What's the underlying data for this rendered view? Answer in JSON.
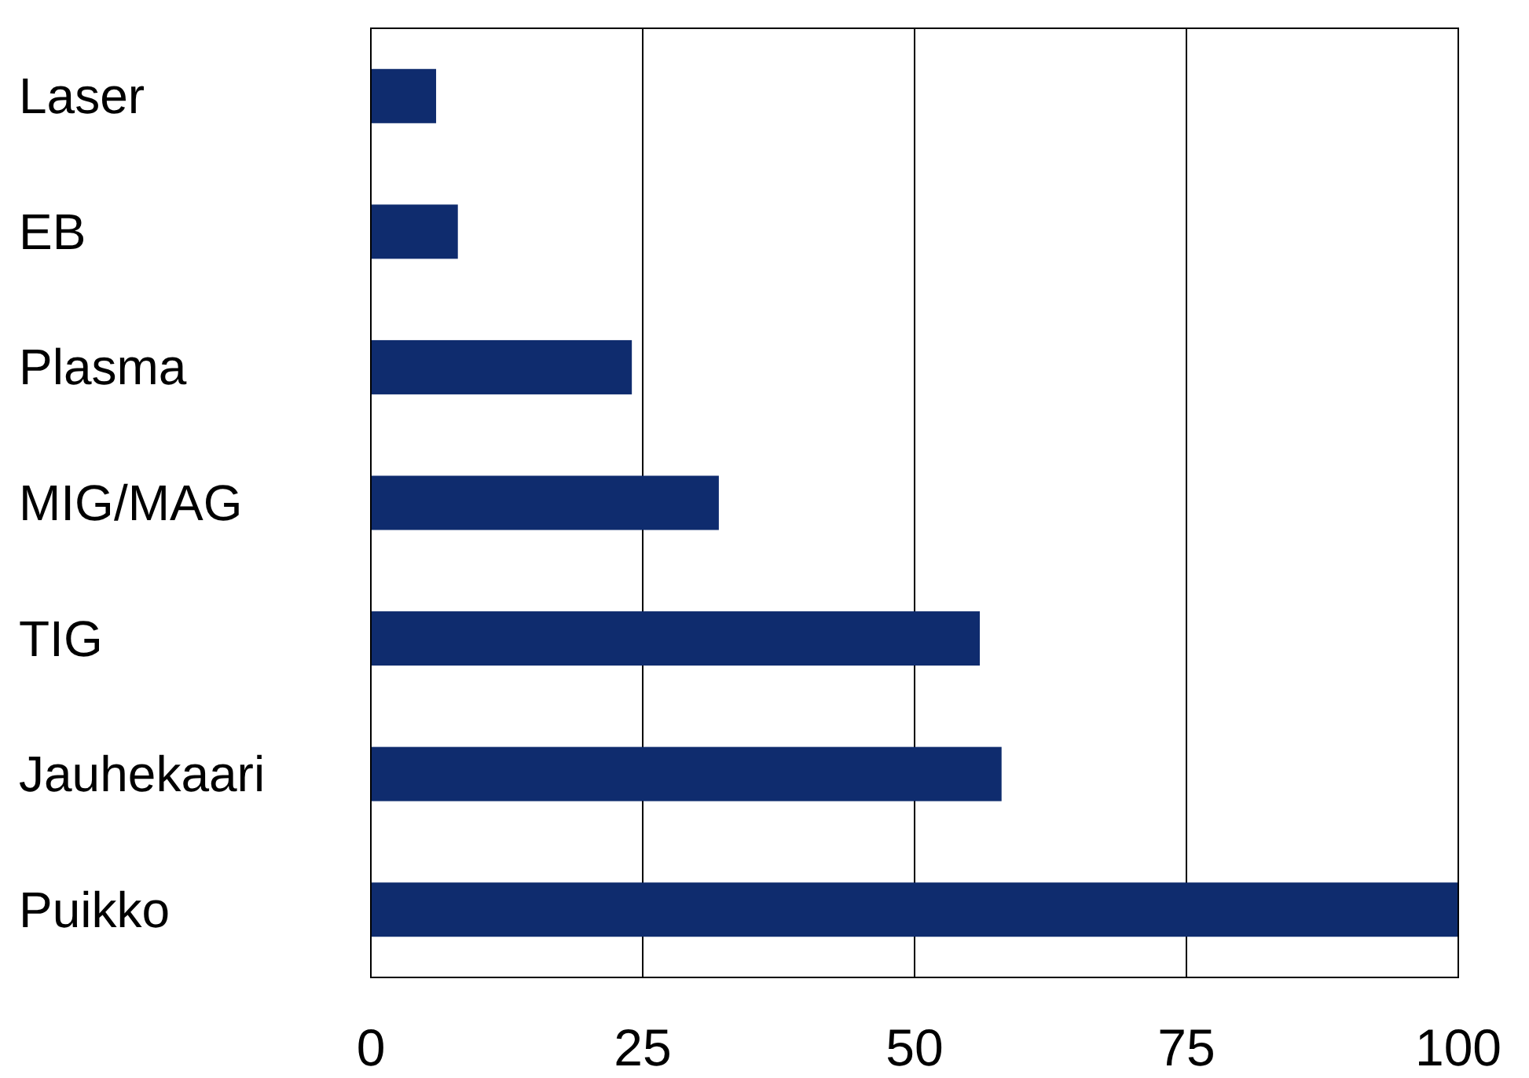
{
  "chart_data": {
    "type": "bar",
    "orientation": "horizontal",
    "categories": [
      "Laser",
      "EB",
      "Plasma",
      "MIG/MAG",
      "TIG",
      "Jauhekaari",
      "Puikko"
    ],
    "values": [
      6,
      8,
      24,
      32,
      56,
      58,
      100
    ],
    "color": "#0f2c6e",
    "xlim": [
      0,
      100
    ],
    "xticks": [
      0,
      25,
      50,
      75,
      100
    ],
    "grid": "x"
  }
}
